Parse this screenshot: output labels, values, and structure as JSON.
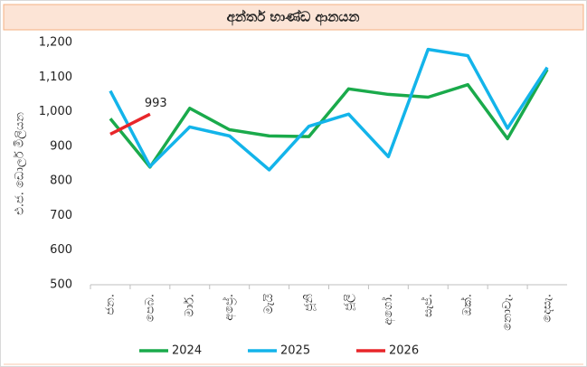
{
  "chart_data": {
    "type": "line",
    "title": "අන්තර් භාණ්ඩ ආනයන",
    "y_label": "එ.ජ. ඩොලර් මිලියන",
    "categories": [
      "ජන.",
      "පෙබ.",
      "මාර්.",
      "අප්‍රේ.",
      "මැයි",
      "ජූනි",
      "ජූලි",
      "අගෝ.",
      "සැප්.",
      "ඔක්.",
      "නොවැ.",
      "දෙසැ."
    ],
    "series": [
      {
        "name": "2024",
        "color": "#1aaa4b",
        "values": [
          980,
          840,
          1010,
          948,
          930,
          928,
          1066,
          1050,
          1042,
          1078,
          922,
          1122
        ]
      },
      {
        "name": "2025",
        "color": "#13b4ea",
        "values": [
          1060,
          842,
          956,
          930,
          832,
          958,
          993,
          870,
          1180,
          1162,
          952,
          1128
        ]
      },
      {
        "name": "2026",
        "color": "#e8262a",
        "values": [
          935,
          993,
          null,
          null,
          null,
          null,
          null,
          null,
          null,
          null,
          null,
          null
        ]
      }
    ],
    "ylim": [
      500,
      1200
    ],
    "yticks": [
      500,
      600,
      700,
      800,
      900,
      {
        "value": 1000,
        "label": "1,000"
      },
      {
        "value": 1100,
        "label": "1,100"
      },
      {
        "value": 1200,
        "label": "1,200"
      }
    ],
    "grid": false,
    "legend": "bottom"
  }
}
